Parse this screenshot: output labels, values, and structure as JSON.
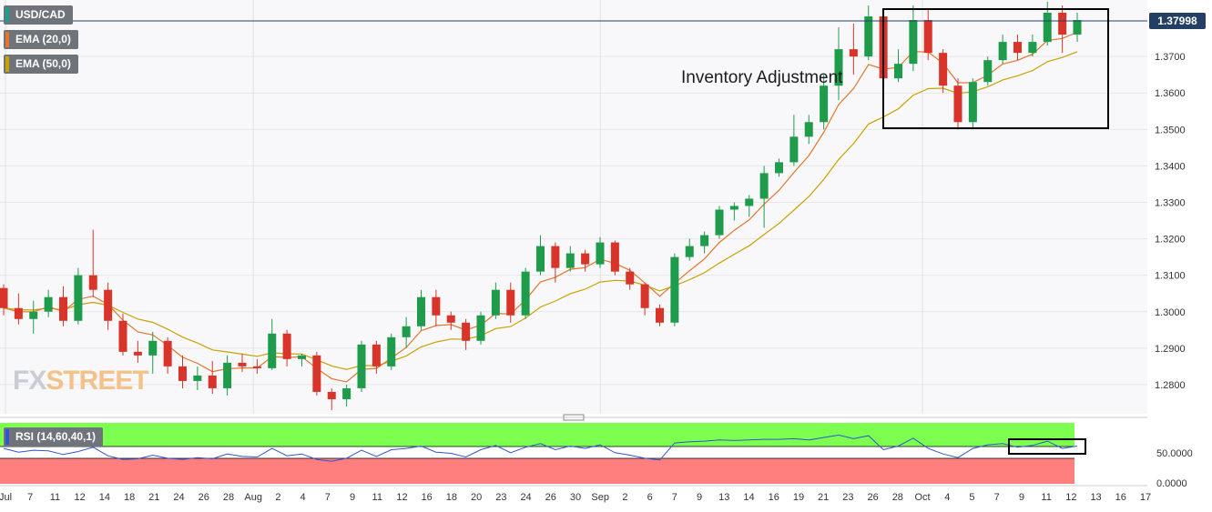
{
  "chart_data": {
    "type": "candlestick",
    "symbol": "USD/CAD",
    "last_price": "1.37998",
    "annotation": "Inventory Adjustment",
    "logo": {
      "part1": "FX",
      "part2": "STREET"
    },
    "indicators": [
      {
        "label": "EMA (20,0)",
        "color": "#e4752a"
      },
      {
        "label": "EMA (50,0)",
        "color": "#c8a200"
      }
    ],
    "rsi": {
      "label": "RSI (14,60,40,1)",
      "upper_band_label": "50.0000",
      "lower_band_label": "0.0000",
      "line_color": "#2f55d4"
    },
    "price_axis": {
      "min": 1.272,
      "max": 1.3855,
      "ticks": [
        "1.3700",
        "1.3600",
        "1.3500",
        "1.3400",
        "1.3300",
        "1.3200",
        "1.3100",
        "1.3000",
        "1.2900",
        "1.2800"
      ]
    },
    "x_ticks": [
      "Jul",
      "7",
      "11",
      "12",
      "14",
      "18",
      "21",
      "24",
      "26",
      "28",
      "Aug",
      "2",
      "4",
      "7",
      "9",
      "11",
      "12",
      "16",
      "18",
      "20",
      "23",
      "24",
      "26",
      "30",
      "Sep",
      "2",
      "6",
      "7",
      "9",
      "13",
      "14",
      "16",
      "19",
      "21",
      "23",
      "26",
      "28",
      "Oct",
      "4",
      "5",
      "7",
      "9",
      "11",
      "12",
      "13",
      "16",
      "17"
    ],
    "ohlc_points": [
      [
        1.3065,
        1.3075,
        1.299,
        1.301
      ],
      [
        1.301,
        1.305,
        1.2965,
        1.298
      ],
      [
        1.298,
        1.303,
        1.294,
        1.3
      ],
      [
        1.3,
        1.306,
        1.2985,
        1.304
      ],
      [
        1.304,
        1.307,
        1.296,
        1.2975
      ],
      [
        1.2975,
        1.312,
        1.2965,
        1.31
      ],
      [
        1.31,
        1.3225,
        1.304,
        1.306
      ],
      [
        1.306,
        1.308,
        1.295,
        1.2975
      ],
      [
        1.2975,
        1.2995,
        1.288,
        1.289
      ],
      [
        1.289,
        1.292,
        1.286,
        1.288
      ],
      [
        1.288,
        1.2945,
        1.283,
        1.292
      ],
      [
        1.292,
        1.293,
        1.283,
        1.285
      ],
      [
        1.285,
        1.288,
        1.279,
        1.281
      ],
      [
        1.281,
        1.285,
        1.2785,
        1.2825
      ],
      [
        1.2825,
        1.2865,
        1.2775,
        1.279
      ],
      [
        1.279,
        1.288,
        1.277,
        1.286
      ],
      [
        1.286,
        1.2885,
        1.2835,
        1.285
      ],
      [
        1.285,
        1.287,
        1.283,
        1.2845
      ],
      [
        1.2845,
        1.298,
        1.284,
        1.294
      ],
      [
        1.294,
        1.295,
        1.285,
        1.287
      ],
      [
        1.287,
        1.2885,
        1.285,
        1.288
      ],
      [
        1.288,
        1.289,
        1.277,
        1.278
      ],
      [
        1.278,
        1.279,
        1.273,
        1.276
      ],
      [
        1.276,
        1.28,
        1.274,
        1.279
      ],
      [
        1.279,
        1.292,
        1.278,
        1.291
      ],
      [
        1.291,
        1.292,
        1.283,
        1.285
      ],
      [
        1.285,
        1.294,
        1.284,
        1.293
      ],
      [
        1.293,
        1.2985,
        1.29,
        1.296
      ],
      [
        1.296,
        1.306,
        1.295,
        1.304
      ],
      [
        1.304,
        1.306,
        1.296,
        1.299
      ],
      [
        1.299,
        1.3,
        1.295,
        1.297
      ],
      [
        1.297,
        1.298,
        1.2895,
        1.292
      ],
      [
        1.292,
        1.3,
        1.291,
        1.299
      ],
      [
        1.299,
        1.308,
        1.298,
        1.306
      ],
      [
        1.306,
        1.308,
        1.297,
        1.299
      ],
      [
        1.299,
        1.312,
        1.298,
        1.311
      ],
      [
        1.311,
        1.321,
        1.31,
        1.318
      ],
      [
        1.318,
        1.319,
        1.308,
        1.312
      ],
      [
        1.312,
        1.318,
        1.311,
        1.316
      ],
      [
        1.316,
        1.317,
        1.311,
        1.313
      ],
      [
        1.313,
        1.3205,
        1.312,
        1.319
      ],
      [
        1.319,
        1.3195,
        1.31,
        1.311
      ],
      [
        1.311,
        1.312,
        1.306,
        1.3075
      ],
      [
        1.3075,
        1.308,
        1.299,
        1.301
      ],
      [
        1.301,
        1.302,
        1.296,
        1.297
      ],
      [
        1.297,
        1.316,
        1.296,
        1.315
      ],
      [
        1.315,
        1.32,
        1.314,
        1.318
      ],
      [
        1.318,
        1.322,
        1.316,
        1.321
      ],
      [
        1.321,
        1.329,
        1.32,
        1.328
      ],
      [
        1.328,
        1.33,
        1.325,
        1.329
      ],
      [
        1.329,
        1.332,
        1.326,
        1.331
      ],
      [
        1.331,
        1.34,
        1.323,
        1.338
      ],
      [
        1.338,
        1.342,
        1.337,
        1.341
      ],
      [
        1.341,
        1.354,
        1.34,
        1.348
      ],
      [
        1.348,
        1.354,
        1.346,
        1.352
      ],
      [
        1.352,
        1.365,
        1.35,
        1.362
      ],
      [
        1.362,
        1.378,
        1.358,
        1.372
      ],
      [
        1.372,
        1.379,
        1.365,
        1.37
      ],
      [
        1.37,
        1.384,
        1.369,
        1.381
      ],
      [
        1.381,
        1.382,
        1.36,
        1.364
      ],
      [
        1.364,
        1.372,
        1.363,
        1.368
      ],
      [
        1.368,
        1.384,
        1.366,
        1.38
      ],
      [
        1.38,
        1.383,
        1.369,
        1.371
      ],
      [
        1.371,
        1.372,
        1.36,
        1.362
      ],
      [
        1.362,
        1.364,
        1.35,
        1.352
      ],
      [
        1.352,
        1.364,
        1.3505,
        1.363
      ],
      [
        1.363,
        1.37,
        1.362,
        1.369
      ],
      [
        1.369,
        1.376,
        1.368,
        1.374
      ],
      [
        1.374,
        1.376,
        1.369,
        1.371
      ],
      [
        1.371,
        1.376,
        1.37,
        1.374
      ],
      [
        1.374,
        1.385,
        1.373,
        1.382
      ],
      [
        1.382,
        1.384,
        1.371,
        1.376
      ],
      [
        1.376,
        1.382,
        1.374,
        1.38
      ]
    ],
    "rsi_points": [
      58,
      52,
      55,
      54,
      48,
      53,
      60,
      46,
      40,
      41,
      47,
      42,
      40,
      43,
      41,
      49,
      45,
      44,
      58,
      46,
      49,
      40,
      37,
      42,
      55,
      45,
      56,
      58,
      62,
      52,
      50,
      44,
      56,
      63,
      51,
      60,
      66,
      56,
      62,
      58,
      64,
      51,
      47,
      42,
      39,
      67,
      69,
      70,
      72,
      71,
      72,
      73,
      73,
      74,
      72,
      76,
      80,
      74,
      79,
      56,
      62,
      75,
      58,
      49,
      43,
      58,
      64,
      66,
      60,
      63,
      70,
      58,
      62
    ]
  }
}
